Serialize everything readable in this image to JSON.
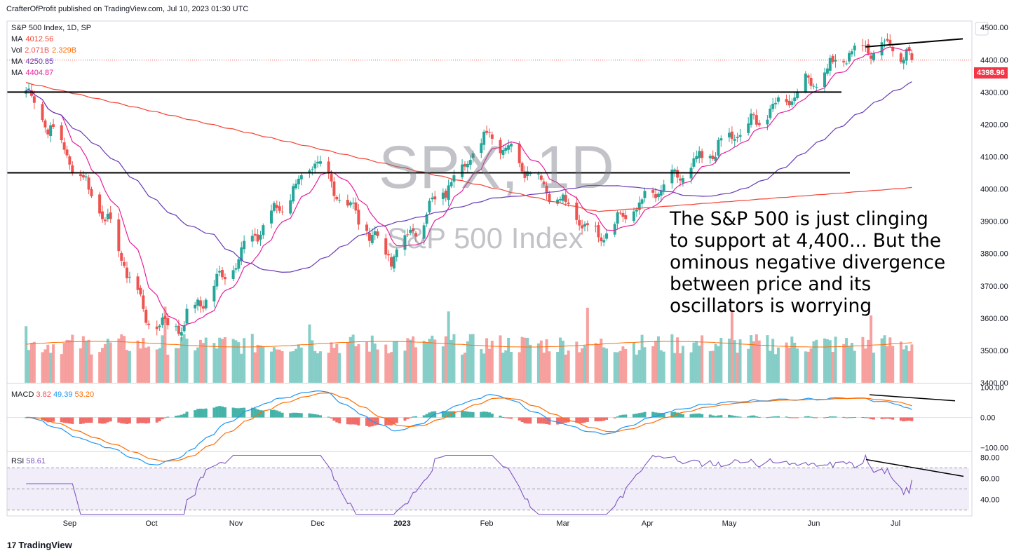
{
  "header": {
    "published_by": "CrafterOfProfit published on TradingView.com, Jul 10, 2023 01:30 UTC"
  },
  "legend": {
    "title": "S&P 500 Index, 1D, SP",
    "ma1_label": "MA",
    "ma1_value": "4012.56",
    "vol_label": "Vol",
    "vol_value": "2.071B",
    "vol_ma": "2.329B",
    "ma2_label": "MA",
    "ma2_value": "4250.85",
    "ma3_label": "MA",
    "ma3_value": "4404.87"
  },
  "watermark": {
    "symbol": "SPX, 1D",
    "name": "S&P 500 Index"
  },
  "annotation": "The S&P 500 is just clinging\nto support at 4,400... But the\nominous negative divergence\nbetween price and its\noscillators is worrying",
  "last_price_tag": "4398.96",
  "macd_legend": {
    "label": "MACD",
    "v1": "3.82",
    "v2": "49.39",
    "v3": "53.20"
  },
  "rsi_legend": {
    "label": "RSI",
    "value": "58.61"
  },
  "footer": {
    "logo": "17",
    "brand": "TradingView"
  },
  "colors": {
    "up": "#26a69a",
    "down": "#ef5350",
    "ma_red": "#f44336",
    "ma_purple": "#673ab7",
    "ma_pink": "#e91e9c",
    "macd": "#2196f3",
    "signal": "#ff6d00",
    "rsi": "#7e57c2"
  },
  "chart_data": [
    {
      "type": "candlestick",
      "title": "S&P 500 Index, 1D, SP",
      "x_tick_labels": [
        "Sep",
        "Oct",
        "Nov",
        "Dec",
        "2023",
        "Feb",
        "Mar",
        "Apr",
        "May",
        "Jun",
        "Jul"
      ],
      "y_tick_labels": [
        "4500.00",
        "4400.00",
        "4300.00",
        "4200.00",
        "4100.00",
        "4000.00",
        "3900.00",
        "3800.00",
        "3700.00",
        "3600.00",
        "3500.00",
        "3400.00"
      ],
      "ylim": [
        3400,
        4520
      ],
      "key_points": [
        {
          "x": "2022-08-16",
          "close": 4305
        },
        {
          "x": "2022-09-13",
          "close": 3933
        },
        {
          "x": "2022-09-30",
          "close": 3586
        },
        {
          "x": "2022-10-12",
          "close": 3577
        },
        {
          "x": "2022-11-30",
          "close": 4080
        },
        {
          "x": "2022-12-28",
          "close": 3783
        },
        {
          "x": "2023-02-02",
          "close": 4179
        },
        {
          "x": "2023-03-13",
          "close": 3855
        },
        {
          "x": "2023-06-15",
          "close": 4425
        },
        {
          "x": "2023-06-30",
          "close": 4450
        },
        {
          "x": "2023-07-07",
          "close": 4398.96
        }
      ],
      "horizontal_levels": [
        4300,
        4050
      ],
      "moving_averages": [
        {
          "name": "MA",
          "value": 4012.56
        },
        {
          "name": "MA",
          "value": 4250.85
        },
        {
          "name": "MA",
          "value": 4404.87
        }
      ]
    },
    {
      "type": "bar",
      "title": "Vol",
      "last_volume": "2.071B",
      "volume_ma": "2.329B"
    },
    {
      "type": "line",
      "title": "MACD",
      "values": {
        "macd": 49.39,
        "signal": 53.2,
        "histogram": 3.82
      },
      "y_tick_labels": [
        "100.00",
        "0.00",
        "−100.00"
      ],
      "ylim": [
        -110,
        110
      ]
    },
    {
      "type": "line",
      "title": "RSI",
      "last_value": 58.61,
      "y_tick_labels": [
        "80.00",
        "60.00",
        "40.00"
      ],
      "ylim": [
        25,
        85
      ],
      "bands": [
        30,
        50,
        70
      ]
    }
  ]
}
